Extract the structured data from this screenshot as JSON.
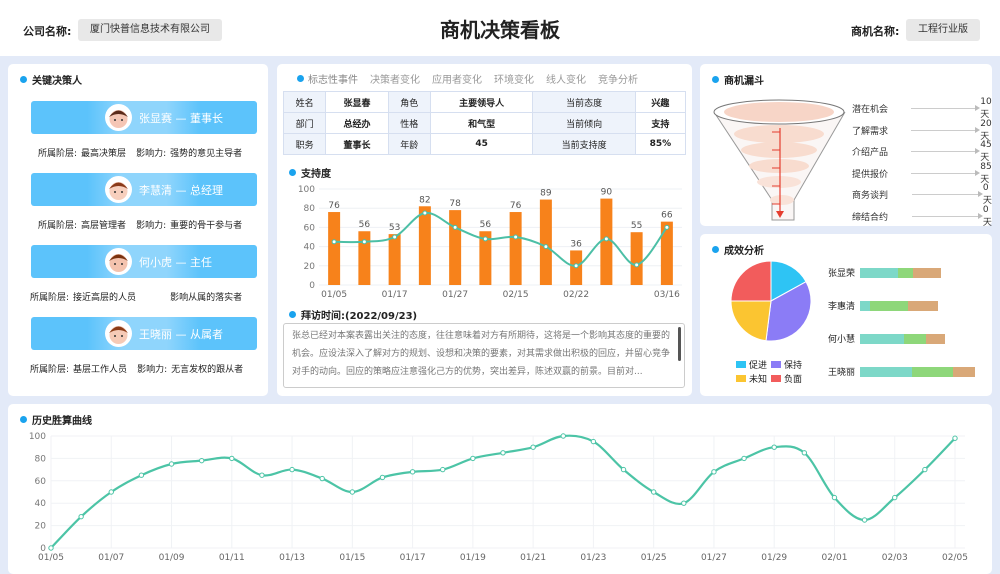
{
  "header": {
    "company_label": "公司名称:",
    "company": "厦门快普信息技术有限公司",
    "title": "商机决策看板",
    "opp_label": "商机名称:",
    "opp": "工程行业版"
  },
  "decision_makers": {
    "title": "关键决策人",
    "people": [
      {
        "name": "张显赛 — 董事长",
        "level_label": "所属阶层:",
        "level": "最高决策层",
        "influence_label": "影响力:",
        "influence": "强势的意见主导者"
      },
      {
        "name": "李慧清 — 总经理",
        "level_label": "所属阶层:",
        "level": "高层管理者",
        "influence_label": "影响力:",
        "influence": "重要的骨干参与者"
      },
      {
        "name": "何小虎 — 主任",
        "level_label": "所属阶层:",
        "level": "接近高层的人员",
        "influence_label": "",
        "influence": "影响从属的落实者"
      },
      {
        "name": "王晓丽 — 从属者",
        "level_label": "所属阶层:",
        "level": "基层工作人员",
        "influence_label": "影响力:",
        "influence": "无言发权的跟从者"
      }
    ]
  },
  "middle": {
    "tabs": [
      "标志性事件",
      "决策者变化",
      "应用者变化",
      "环境变化",
      "线人变化",
      "竞争分析"
    ],
    "table": [
      [
        "姓名",
        "张显春",
        "角色",
        "主要领导人",
        "当前态度",
        "兴趣"
      ],
      [
        "部门",
        "总经办",
        "性格",
        "和气型",
        "当前倾向",
        "支持"
      ],
      [
        "职务",
        "董事长",
        "年龄",
        "45",
        "当前支持度",
        "85%"
      ]
    ],
    "support_title": "支持度",
    "visit_title": "拜访时间:(2022/09/23)",
    "visit_note": "张总已经对本案表露出关注的态度，往往意味着对方有所期待，这将是一个影响其态度的重要的机会。应设法深入了解对方的规划、设想和决策的要素，对其需求做出积极的回应，并留心竞争对手的动向。回应的策略应注意强化己方的优势，突出差异，陈述双赢的前景。目前对..."
  },
  "funnel": {
    "title": "商机漏斗",
    "stages": [
      {
        "label": "潜在机会",
        "value": "10天"
      },
      {
        "label": "了解需求",
        "value": "20天"
      },
      {
        "label": "介绍产品",
        "value": "45天"
      },
      {
        "label": "提供报价",
        "value": "85天"
      },
      {
        "label": "商务谈判",
        "value": "0天"
      },
      {
        "label": "缔结合约",
        "value": "0天"
      }
    ],
    "color": "#e53d2f"
  },
  "effect": {
    "title": "成效分析"
  },
  "history": {
    "title": "历史胜算曲线"
  },
  "chart_data": [
    {
      "type": "bar+line",
      "title": "支持度",
      "ylim": [
        0,
        100
      ],
      "yticks": [
        0,
        20,
        40,
        60,
        80,
        100
      ],
      "categories": [
        "01/05",
        "",
        "01/17",
        "",
        "01/27",
        "",
        "02/15",
        "",
        "02/22",
        "",
        "",
        "03/16"
      ],
      "series": [
        {
          "type": "bar",
          "values": [
            76,
            56,
            53,
            82,
            78,
            56,
            76,
            89,
            36,
            90,
            55,
            66
          ],
          "color": "#f7821b"
        },
        {
          "type": "line",
          "values": [
            45,
            45,
            50,
            75,
            60,
            48,
            50,
            40,
            20,
            48,
            21,
            60
          ],
          "color": "#4cbfa6"
        }
      ]
    },
    {
      "type": "pie",
      "title": "成效分析",
      "categories": [
        "促进",
        "保持",
        "未知",
        "负面"
      ],
      "values": [
        17,
        35,
        23,
        25
      ],
      "colors": [
        "#2ec4f4",
        "#8b7cf6",
        "#fbc531",
        "#f25c5c"
      ]
    },
    {
      "type": "stacked-bar",
      "orientation": "horizontal",
      "categories": [
        "张显荣",
        "李惠清",
        "何小慧",
        "王晓丽"
      ],
      "series": [
        {
          "values": [
            38,
            10,
            44,
            52
          ],
          "color": "#7dd8c8"
        },
        {
          "values": [
            15,
            38,
            22,
            41
          ],
          "color": "#8ed77a"
        },
        {
          "values": [
            28,
            30,
            19,
            22
          ],
          "color": "#d9a878"
        }
      ]
    },
    {
      "type": "line",
      "title": "历史胜算曲线",
      "ylim": [
        0,
        100
      ],
      "yticks": [
        0,
        20,
        40,
        60,
        80,
        100
      ],
      "smooth": true,
      "color": "#4cc4a6",
      "categories": [
        "01/05",
        "01/06",
        "01/07",
        "01/08",
        "01/09",
        "01/10",
        "01/11",
        "01/12",
        "01/13",
        "01/14",
        "01/15",
        "01/16",
        "01/17",
        "01/18",
        "01/19",
        "01/20",
        "01/21",
        "01/22",
        "01/23",
        "01/24",
        "01/25",
        "01/26",
        "01/27",
        "01/28",
        "01/29",
        "01/30",
        "02/01",
        "02/02",
        "02/03",
        "02/04",
        "02/05"
      ],
      "values": [
        0,
        28,
        50,
        65,
        75,
        78,
        80,
        65,
        70,
        62,
        50,
        63,
        68,
        70,
        80,
        85,
        90,
        100,
        95,
        70,
        50,
        40,
        68,
        80,
        90,
        85,
        45,
        25,
        45,
        70,
        98
      ]
    }
  ]
}
